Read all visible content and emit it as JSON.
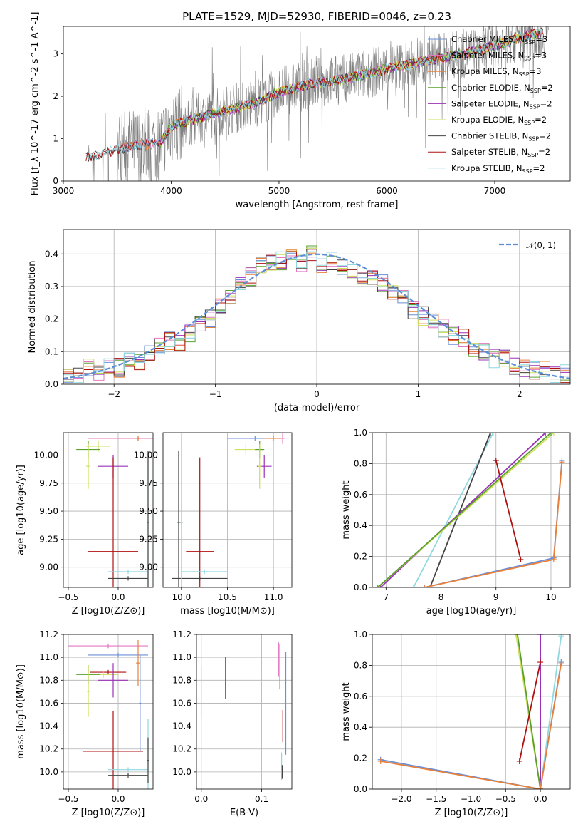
{
  "figure_title": "PLATE=1529, MJD=52930, FIBERID=0046, z=0.23",
  "colors": {
    "chabrier_miles": "#6b8fd6",
    "salpeter_miles": "#e377c2",
    "kroupa_miles": "#e8803a",
    "chabrier_elodie": "#5aa02c",
    "salpeter_elodie": "#9b30b8",
    "kroupa_elodie": "#cde05a",
    "chabrier_stelib": "#444444",
    "salpeter_stelib": "#b01010",
    "kroupa_stelib": "#8fd8e0",
    "data": "#808080",
    "gaussian": "#5b8ed6"
  },
  "chart_data": [
    {
      "id": "spectrum",
      "type": "line",
      "xlabel": "wavelength [Angstrom, rest frame]",
      "ylabel": "Flux [f_λ 10^-17 erg cm^-2 s^-1 A^-1]",
      "xlim": [
        3000,
        7700
      ],
      "ylim": [
        0,
        3.65
      ],
      "xticks": [
        "3000",
        "4000",
        "5000",
        "6000",
        "7000"
      ],
      "yticks": [
        "0",
        "1",
        "2",
        "3"
      ],
      "legend": [
        "Chabrier MILES, N_SSP=3",
        "Salpeter MILES, N_SSP=3",
        "Kroupa MILES, N_SSP=3",
        "Chabrier ELODIE, N_SSP=2",
        "Salpeter ELODIE, N_SSP=2",
        "Kroupa ELODIE, N_SSP=2",
        "Chabrier STELIB, N_SSP=2",
        "Salpeter STELIB, N_SSP=2",
        "Kroupa STELIB, N_SSP=2"
      ],
      "legend_position": "right",
      "continuum": {
        "x": [
          3210,
          3500,
          3700,
          3900,
          4000,
          4400,
          4800,
          5000,
          5300,
          5600,
          6000,
          6400,
          6800,
          7200,
          7400
        ],
        "y": [
          0.55,
          0.75,
          0.85,
          0.9,
          1.3,
          1.6,
          1.85,
          2.1,
          2.3,
          2.4,
          2.65,
          2.85,
          3.05,
          3.35,
          3.5
        ]
      }
    },
    {
      "id": "residuals",
      "type": "line",
      "xlabel": "(data-model)/error",
      "ylabel": "Normed distribution",
      "xlim": [
        -2.5,
        2.5
      ],
      "ylim": [
        0,
        0.475
      ],
      "xticks": [
        "−2",
        "−1",
        "0",
        "1",
        "2"
      ],
      "yticks": [
        "0.0",
        "0.1",
        "0.2",
        "0.3",
        "0.4"
      ],
      "legend": [
        "𝒩(0, 1)"
      ],
      "bins": [
        -2.5,
        -2.4,
        -2.3,
        -2.2,
        -2.1,
        -2.0,
        -1.9,
        -1.8,
        -1.7,
        -1.6,
        -1.5,
        -1.4,
        -1.3,
        -1.2,
        -1.1,
        -1.0,
        -0.9,
        -0.8,
        -0.7,
        -0.6,
        -0.5,
        -0.4,
        -0.3,
        -0.2,
        -0.1,
        0.0,
        0.1,
        0.2,
        0.3,
        0.4,
        0.5,
        0.6,
        0.7,
        0.8,
        0.9,
        1.0,
        1.1,
        1.2,
        1.3,
        1.4,
        1.5,
        1.6,
        1.7,
        1.8,
        1.9,
        2.0,
        2.1,
        2.2,
        2.3,
        2.4
      ],
      "hist": [
        0.02,
        0.03,
        0.05,
        0.04,
        0.05,
        0.05,
        0.08,
        0.07,
        0.09,
        0.12,
        0.13,
        0.13,
        0.16,
        0.19,
        0.2,
        0.24,
        0.27,
        0.3,
        0.33,
        0.36,
        0.37,
        0.38,
        0.4,
        0.37,
        0.4,
        0.36,
        0.38,
        0.36,
        0.34,
        0.32,
        0.33,
        0.31,
        0.29,
        0.27,
        0.23,
        0.21,
        0.2,
        0.17,
        0.15,
        0.14,
        0.11,
        0.1,
        0.08,
        0.08,
        0.06,
        0.05,
        0.04,
        0.04,
        0.03,
        0.03
      ]
    },
    {
      "id": "age_vs_Z",
      "type": "scatter",
      "xlabel": "Z [log10(Z/Z⊙)]",
      "ylabel": "age [log10(age/yr)]",
      "xlim": [
        -0.55,
        0.35
      ],
      "ylim": [
        8.82,
        10.2
      ],
      "xticks": [
        "−0.5",
        "0.0"
      ],
      "yticks": [
        "9.00",
        "9.25",
        "9.50",
        "9.75",
        "10.00"
      ],
      "points": [
        {
          "c": "salpeter_miles",
          "x": 0.2,
          "y": 10.15,
          "xe": 0.5,
          "ye": 0.02
        },
        {
          "c": "kroupa_miles",
          "x": 0.2,
          "y": 10.15,
          "xe": 0.02,
          "ye": 0.02
        },
        {
          "c": "kroupa_elodie",
          "x": -0.2,
          "y": 10.08,
          "xe": 0.12,
          "ye": 0.05
        },
        {
          "c": "chabrier_elodie",
          "x": -0.3,
          "y": 10.05,
          "xe": 0.12,
          "ye": 0.08
        },
        {
          "c": "salpeter_elodie",
          "x": -0.05,
          "y": 9.9,
          "xe": 0.15,
          "ye": 0.1
        },
        {
          "c": "kroupa_elodie",
          "x": -0.3,
          "y": 9.9,
          "xe": 0.02,
          "ye": 0.2
        },
        {
          "c": "salpeter_stelib",
          "x": -0.05,
          "y": 9.14,
          "xe": 0.25,
          "ye": 0.84
        },
        {
          "c": "kroupa_stelib",
          "x": 0.1,
          "y": 8.96,
          "xe": 0.2,
          "ye": 0.02
        },
        {
          "c": "chabrier_stelib",
          "x": 0.1,
          "y": 8.9,
          "xe": 0.2,
          "ye": 0.02
        },
        {
          "c": "kroupa_stelib",
          "x": 0.3,
          "y": 9.4,
          "xe": 0.01,
          "ye": 0.6
        },
        {
          "c": "chabrier_stelib",
          "x": 0.3,
          "y": 9.4,
          "xe": 0.01,
          "ye": 0.64
        }
      ]
    },
    {
      "id": "age_vs_mass",
      "type": "scatter",
      "xlabel": "mass [log10(M/M⊙)]",
      "ylabel": "",
      "xlim": [
        9.8,
        11.2
      ],
      "ylim": [
        8.82,
        10.2
      ],
      "xticks": [
        "10.0",
        "10.5",
        "11.0"
      ],
      "yticks": [
        "9.00",
        "9.25",
        "9.50",
        "9.75",
        "10.00"
      ],
      "points": [
        {
          "c": "chabrier_miles",
          "x": 10.8,
          "y": 10.15,
          "xe": 0.3,
          "ye": 0.02
        },
        {
          "c": "kroupa_miles",
          "x": 11.0,
          "y": 10.15,
          "xe": 0.1,
          "ye": 0.02
        },
        {
          "c": "salpeter_miles",
          "x": 11.1,
          "y": 10.15,
          "xe": 0.02,
          "ye": 0.05
        },
        {
          "c": "kroupa_elodie",
          "x": 10.7,
          "y": 10.05,
          "xe": 0.12,
          "ye": 0.05
        },
        {
          "c": "chabrier_elodie",
          "x": 10.85,
          "y": 10.05,
          "xe": 0.05,
          "ye": 0.08
        },
        {
          "c": "salpeter_elodie",
          "x": 10.9,
          "y": 9.9,
          "xe": 0.08,
          "ye": 0.1
        },
        {
          "c": "kroupa_elodie",
          "x": 10.85,
          "y": 9.9,
          "xe": 0.02,
          "ye": 0.2
        },
        {
          "c": "salpeter_stelib",
          "x": 10.2,
          "y": 9.14,
          "xe": 0.15,
          "ye": 0.84
        },
        {
          "c": "kroupa_stelib",
          "x": 10.25,
          "y": 8.96,
          "xe": 0.25,
          "ye": 0.02
        },
        {
          "c": "chabrier_stelib",
          "x": 10.2,
          "y": 8.9,
          "xe": 0.3,
          "ye": 0.02
        },
        {
          "c": "kroupa_stelib",
          "x": 10.0,
          "y": 9.4,
          "xe": 0.02,
          "ye": 0.6
        },
        {
          "c": "chabrier_stelib",
          "x": 9.97,
          "y": 9.4,
          "xe": 0.02,
          "ye": 0.64
        }
      ]
    },
    {
      "id": "weight_vs_age",
      "type": "line",
      "xlabel": "age [log10(age/yr)]",
      "ylabel": "mass weight",
      "xlim": [
        6.75,
        10.35
      ],
      "ylim": [
        0,
        1
      ],
      "xticks": [
        "7",
        "8",
        "9",
        "10"
      ],
      "yticks": [
        "0.0",
        "0.2",
        "0.4",
        "0.6",
        "0.8",
        "1.0"
      ],
      "series": [
        {
          "c": "kroupa_stelib",
          "x": [
            7.5,
            8.95
          ],
          "y": [
            0.0,
            1.0
          ]
        },
        {
          "c": "chabrier_stelib",
          "x": [
            7.8,
            8.9
          ],
          "y": [
            0.0,
            1.0
          ]
        },
        {
          "c": "salpeter_elodie",
          "x": [
            6.9,
            9.9
          ],
          "y": [
            0.0,
            1.0
          ]
        },
        {
          "c": "kroupa_elodie",
          "x": [
            6.85,
            10.05
          ],
          "y": [
            0.0,
            1.0
          ]
        },
        {
          "c": "chabrier_elodie",
          "x": [
            6.85,
            10.0
          ],
          "y": [
            0.0,
            1.0
          ]
        },
        {
          "c": "salpeter_stelib",
          "x": [
            9.0,
            9.45
          ],
          "y": [
            0.82,
            0.18
          ]
        },
        {
          "c": "chabrier_miles",
          "x": [
            7.7,
            10.05,
            10.2
          ],
          "y": [
            0.0,
            0.19,
            0.82
          ]
        },
        {
          "c": "kroupa_miles",
          "x": [
            7.7,
            10.05,
            10.2
          ],
          "y": [
            0.0,
            0.18,
            0.81
          ]
        }
      ]
    },
    {
      "id": "mass_vs_Z",
      "type": "scatter",
      "xlabel": "Z [log10(Z/Z⊙)]",
      "ylabel": "mass [log10(M/M⊙)]",
      "xlim": [
        -0.55,
        0.35
      ],
      "ylim": [
        9.85,
        11.2
      ],
      "xticks": [
        "−0.5",
        "0.0"
      ],
      "yticks": [
        "10.0",
        "10.2",
        "10.4",
        "10.6",
        "10.8",
        "11.0",
        "11.2"
      ],
      "points": [
        {
          "c": "salpeter_miles",
          "x": -0.1,
          "y": 11.1,
          "xe": 0.4,
          "ye": 0.02
        },
        {
          "c": "chabrier_miles",
          "x": 0.0,
          "y": 11.02,
          "xe": 0.3,
          "ye": 0.02
        },
        {
          "c": "kroupa_miles",
          "x": 0.2,
          "y": 10.95,
          "xe": 0.02,
          "ye": 0.2
        },
        {
          "c": "salpeter_stelib",
          "x": -0.1,
          "y": 10.87,
          "xe": 0.18,
          "ye": 0.02
        },
        {
          "c": "kroupa_elodie",
          "x": -0.15,
          "y": 10.85,
          "xe": 0.15,
          "ye": 0.03
        },
        {
          "c": "chabrier_elodie",
          "x": -0.3,
          "y": 10.85,
          "xe": 0.12,
          "ye": 0.08
        },
        {
          "c": "salpeter_elodie",
          "x": -0.05,
          "y": 10.8,
          "xe": 0.15,
          "ye": 0.15
        },
        {
          "c": "kroupa_elodie",
          "x": -0.3,
          "y": 10.7,
          "xe": 0.01,
          "ye": 0.22
        },
        {
          "c": "chabrier_miles",
          "x": 0.22,
          "y": 10.6,
          "xe": 0.01,
          "ye": 0.42
        },
        {
          "c": "salpeter_stelib",
          "x": -0.05,
          "y": 10.18,
          "xe": 0.3,
          "ye": 0.35
        },
        {
          "c": "kroupa_stelib",
          "x": 0.1,
          "y": 10.02,
          "xe": 0.2,
          "ye": 0.02
        },
        {
          "c": "chabrier_stelib",
          "x": 0.1,
          "y": 9.97,
          "xe": 0.2,
          "ye": 0.02
        },
        {
          "c": "kroupa_stelib",
          "x": 0.3,
          "y": 10.1,
          "xe": 0.01,
          "ye": 0.36
        },
        {
          "c": "chabrier_stelib",
          "x": 0.3,
          "y": 10.1,
          "xe": 0.01,
          "ye": 0.2
        }
      ]
    },
    {
      "id": "mass_vs_ebv",
      "type": "scatter",
      "xlabel": "E(B-V)",
      "ylabel": "",
      "xlim": [
        -0.008,
        0.15
      ],
      "ylim": [
        9.85,
        11.2
      ],
      "xticks": [
        "0.0",
        "0.1"
      ],
      "yticks": [
        "10.0",
        "10.2",
        "10.4",
        "10.6",
        "10.8",
        "11.0",
        "11.2"
      ],
      "points": [
        {
          "c": "kroupa_elodie",
          "x": 0.0,
          "y": 10.7,
          "xe": 0.0,
          "ye": 0.22
        },
        {
          "c": "salpeter_elodie",
          "x": 0.04,
          "y": 10.82,
          "xe": 0.0,
          "ye": 0.18
        },
        {
          "c": "salpeter_miles",
          "x": 0.128,
          "y": 10.98,
          "xe": 0.0,
          "ye": 0.15
        },
        {
          "c": "kroupa_miles",
          "x": 0.13,
          "y": 10.92,
          "xe": 0.0,
          "ye": 0.2
        },
        {
          "c": "salpeter_stelib",
          "x": 0.135,
          "y": 10.4,
          "xe": 0.0,
          "ye": 0.14
        },
        {
          "c": "kroupa_stelib",
          "x": 0.133,
          "y": 10.05,
          "xe": 0.0,
          "ye": 0.12
        },
        {
          "c": "chabrier_stelib",
          "x": 0.134,
          "y": 10.0,
          "xe": 0.0,
          "ye": 0.06
        },
        {
          "c": "chabrier_miles",
          "x": 0.14,
          "y": 10.6,
          "xe": 0.0,
          "ye": 0.45
        }
      ]
    },
    {
      "id": "weight_vs_Z",
      "type": "line",
      "xlabel": "Z [log10(Z/Z⊙)]",
      "ylabel": "mass weight",
      "xlim": [
        -2.42,
        0.43
      ],
      "ylim": [
        0,
        1
      ],
      "xticks": [
        "−2.0",
        "−1.5",
        "−1.0",
        "−0.5",
        "0.0"
      ],
      "yticks": [
        "0.0",
        "0.2",
        "0.4",
        "0.6",
        "0.8",
        "1.0"
      ],
      "series": [
        {
          "c": "kroupa_elodie",
          "x": [
            -0.35,
            0.0
          ],
          "y": [
            1.0,
            0.0
          ]
        },
        {
          "c": "chabrier_elodie",
          "x": [
            -0.33,
            0.0
          ],
          "y": [
            1.0,
            0.0
          ]
        },
        {
          "c": "salpeter_elodie",
          "x": [
            0.0,
            0.0
          ],
          "y": [
            0.0,
            1.0
          ]
        },
        {
          "c": "salpeter_stelib",
          "x": [
            -0.3,
            0.0
          ],
          "y": [
            0.18,
            0.82
          ]
        },
        {
          "c": "kroupa_stelib",
          "x": [
            0.0,
            0.3
          ],
          "y": [
            0.0,
            0.99
          ]
        },
        {
          "c": "chabrier_miles",
          "x": [
            -2.3,
            0.0,
            0.3
          ],
          "y": [
            0.19,
            0.0,
            0.82
          ]
        },
        {
          "c": "kroupa_miles",
          "x": [
            -2.3,
            0.0,
            0.3
          ],
          "y": [
            0.18,
            0.0,
            0.81
          ]
        }
      ]
    }
  ]
}
